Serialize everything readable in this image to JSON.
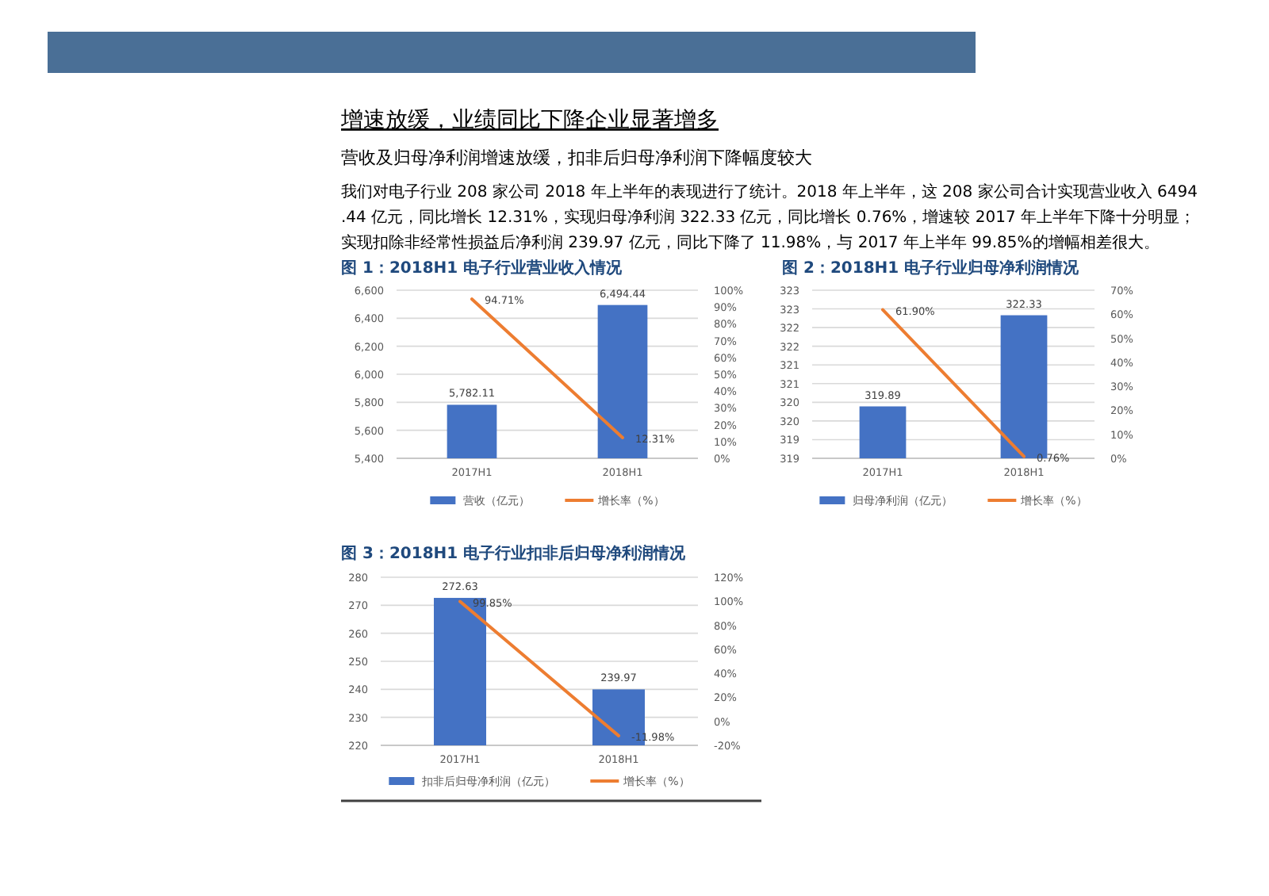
{
  "chart_data": [
    {
      "type": "other",
      "title": "增速放缓，业绩同比下降企业显著增多",
      "subtitle": "营收及归母净利润增速放缓，扣非后归母净利润下降幅度较大",
      "annotations": [
        "我们对电子行业 208 家公司 2018 年上半年的表现进行了统计。2018 年上半年，这 208 家公司合计实现营业收入 6494.44 亿元，同比增长 12.31%，实现归母净利润 322.33 亿元，同比增长 0.76%，增速较 2017 年上半年下降十分明显；实现扣除非经常性损益后净利润 239.97 亿元，同比下降了 11.98%，与 2017 年上半年 99.85%的增幅相差很大。"
      ]
    },
    {
      "type": "bar",
      "title": "图 1：2018H1 电子行业营业收入情况",
      "categories": [
        "2017H1",
        "2018H1"
      ],
      "series": [
        {
          "name": "营收（亿元）",
          "color": "#4472c4",
          "values": [
            5782.11,
            6494.44
          ],
          "value_labels": [
            "5,782.11",
            "6,494.44"
          ]
        },
        {
          "name": "增长率（%）",
          "type": "line",
          "axis": "y2",
          "color": "#ed7d31",
          "values": [
            94.71,
            12.31
          ],
          "value_labels": [
            "94.71%",
            "12.31%"
          ]
        }
      ],
      "ylim": [
        5400,
        6600
      ],
      "yticks": [
        {
          "value": 5400,
          "label": "5,400"
        },
        {
          "value": 5600,
          "label": "5,600"
        },
        {
          "value": 5800,
          "label": "5,800"
        },
        {
          "value": 6000,
          "label": "6,000"
        },
        {
          "value": 6200,
          "label": "6,200"
        },
        {
          "value": 6400,
          "label": "6,400"
        },
        {
          "value": 6600,
          "label": "6,600"
        }
      ],
      "y2lim": [
        0,
        100
      ],
      "y2ticks": [
        {
          "value": 0,
          "label": "0%"
        },
        {
          "value": 10,
          "label": "10%"
        },
        {
          "value": 20,
          "label": "20%"
        },
        {
          "value": 30,
          "label": "30%"
        },
        {
          "value": 40,
          "label": "40%"
        },
        {
          "value": 50,
          "label": "50%"
        },
        {
          "value": 60,
          "label": "60%"
        },
        {
          "value": 70,
          "label": "70%"
        },
        {
          "value": 80,
          "label": "80%"
        },
        {
          "value": 90,
          "label": "90%"
        },
        {
          "value": 100,
          "label": "100%"
        }
      ],
      "grid": "y",
      "legend": "bottom"
    },
    {
      "type": "bar",
      "title": "图 2：2018H1 电子行业归母净利润情况",
      "categories": [
        "2017H1",
        "2018H1"
      ],
      "series": [
        {
          "name": "归母净利润（亿元）",
          "color": "#4472c4",
          "values": [
            319.89,
            322.33
          ],
          "value_labels": [
            "319.89",
            "322.33"
          ]
        },
        {
          "name": "增长率（%）",
          "type": "line",
          "axis": "y2",
          "color": "#ed7d31",
          "values": [
            61.9,
            0.76
          ],
          "value_labels": [
            "61.90%",
            "0.76%"
          ]
        }
      ],
      "ylim": [
        318.5,
        323
      ],
      "yticks": [
        {
          "value": 318.5,
          "label": "319"
        },
        {
          "value": 319,
          "label": "319"
        },
        {
          "value": 319.5,
          "label": "320"
        },
        {
          "value": 320,
          "label": "320"
        },
        {
          "value": 320.5,
          "label": "321"
        },
        {
          "value": 321,
          "label": "321"
        },
        {
          "value": 321.5,
          "label": "322"
        },
        {
          "value": 322,
          "label": "322"
        },
        {
          "value": 322.5,
          "label": "323"
        },
        {
          "value": 323,
          "label": "323"
        }
      ],
      "y2lim": [
        0,
        70
      ],
      "y2ticks": [
        {
          "value": 0,
          "label": "0%"
        },
        {
          "value": 10,
          "label": "10%"
        },
        {
          "value": 20,
          "label": "20%"
        },
        {
          "value": 30,
          "label": "30%"
        },
        {
          "value": 40,
          "label": "40%"
        },
        {
          "value": 50,
          "label": "50%"
        },
        {
          "value": 60,
          "label": "60%"
        },
        {
          "value": 70,
          "label": "70%"
        }
      ],
      "grid": "y",
      "legend": "bottom"
    },
    {
      "type": "bar",
      "title": "图 3：2018H1 电子行业扣非后归母净利润情况",
      "categories": [
        "2017H1",
        "2018H1"
      ],
      "series": [
        {
          "name": "扣非后归母净利润（亿元）",
          "color": "#4472c4",
          "values": [
            272.63,
            239.97
          ],
          "value_labels": [
            "272.63",
            "239.97"
          ]
        },
        {
          "name": "增长率（%）",
          "type": "line",
          "axis": "y2",
          "color": "#ed7d31",
          "values": [
            99.85,
            -11.98
          ],
          "value_labels": [
            "99.85%",
            "-11.98%"
          ]
        }
      ],
      "ylim": [
        220,
        280
      ],
      "yticks": [
        220,
        230,
        240,
        250,
        260,
        270,
        280
      ],
      "y2lim": [
        -20,
        120
      ],
      "y2ticks": [
        {
          "value": -20,
          "label": "-20%"
        },
        {
          "value": 0,
          "label": "0%"
        },
        {
          "value": 20,
          "label": "20%"
        },
        {
          "value": 40,
          "label": "40%"
        },
        {
          "value": 60,
          "label": "60%"
        },
        {
          "value": 80,
          "label": "80%"
        },
        {
          "value": 100,
          "label": "100%"
        },
        {
          "value": 120,
          "label": "120%"
        }
      ],
      "grid": "y",
      "legend": "bottom"
    }
  ]
}
